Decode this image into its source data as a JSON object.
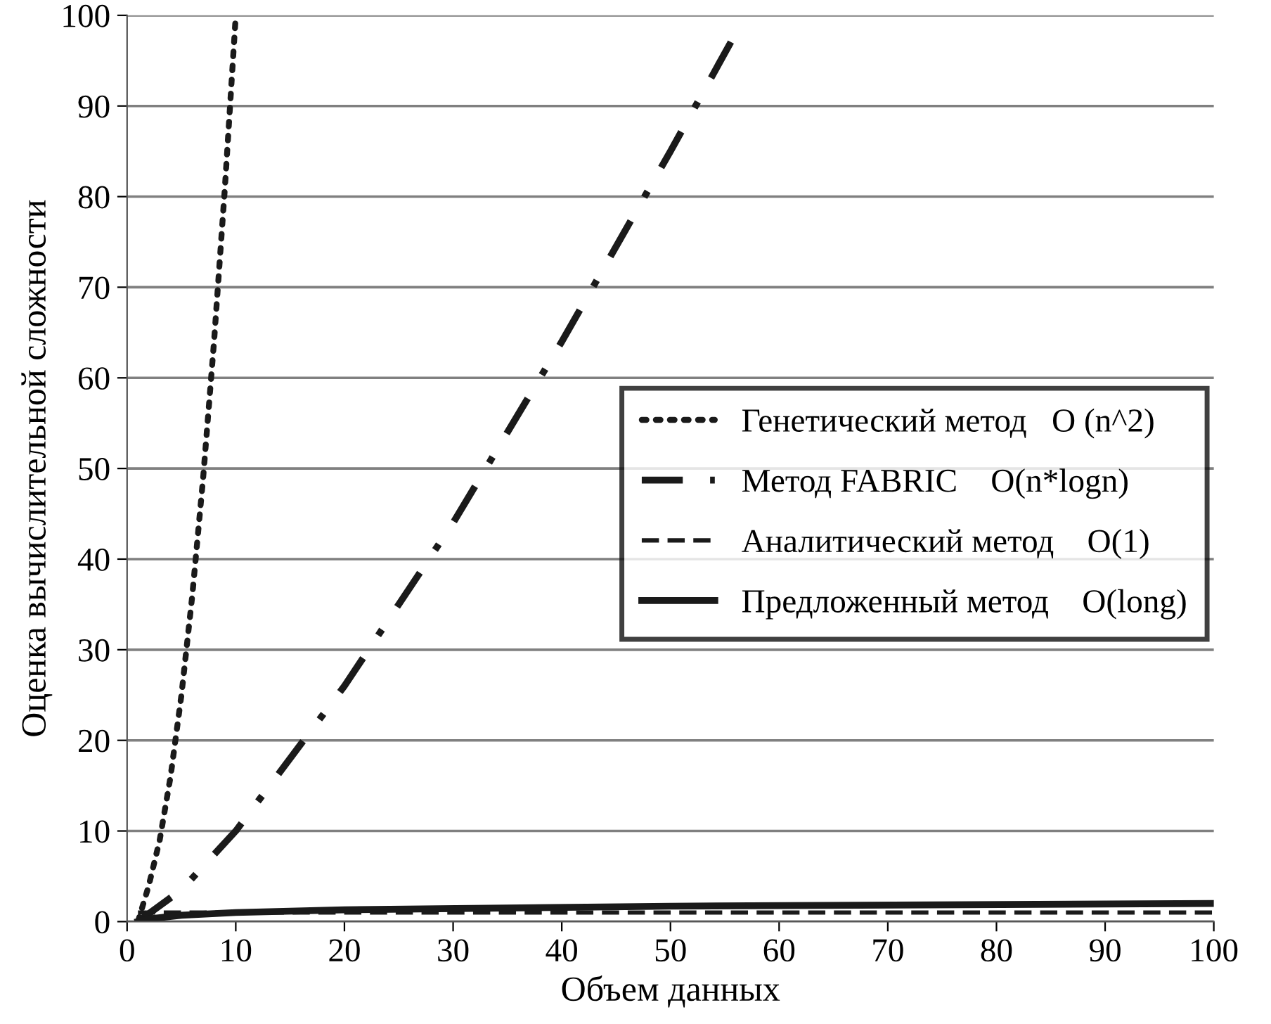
{
  "chart_data": {
    "type": "line",
    "xlabel": "Объем данных",
    "ylabel": "Оценка вычислительной сложности",
    "xlim": [
      0,
      100
    ],
    "ylim": [
      0,
      100
    ],
    "xticks": [
      0,
      10,
      20,
      30,
      40,
      50,
      60,
      70,
      80,
      90,
      100
    ],
    "yticks": [
      0,
      10,
      20,
      30,
      40,
      50,
      60,
      70,
      80,
      90,
      100
    ],
    "grid": "y",
    "legend": "right",
    "marker": "none",
    "series": [
      {
        "name": "Генетический метод   O (n^2)",
        "color": "#1a1a1a",
        "line_style": "dotted",
        "x": [
          1,
          2,
          3,
          4,
          5,
          6,
          7,
          8,
          9,
          10
        ],
        "values": [
          0,
          4,
          9,
          16,
          25,
          36,
          49,
          64,
          81,
          100
        ]
      },
      {
        "name": "Метод FABRIC    O(n*logn)",
        "color": "#1a1a1a",
        "line_style": "dashdot",
        "x": [
          1,
          5,
          10,
          20,
          30,
          40,
          50,
          56
        ],
        "values": [
          0,
          3.5,
          10,
          26,
          44,
          64,
          85,
          98
        ]
      },
      {
        "name": "Аналитический метод    O(1)",
        "color": "#1a1a1a",
        "line_style": "dashed",
        "x": [
          1,
          100
        ],
        "values": [
          1,
          1
        ]
      },
      {
        "name": "Предложенный метод    O(long)",
        "color": "#1a1a1a",
        "line_style": "solid",
        "x": [
          1,
          2,
          5,
          10,
          20,
          50,
          100
        ],
        "values": [
          0,
          0.3,
          0.7,
          1,
          1.3,
          1.7,
          2
        ]
      }
    ]
  }
}
